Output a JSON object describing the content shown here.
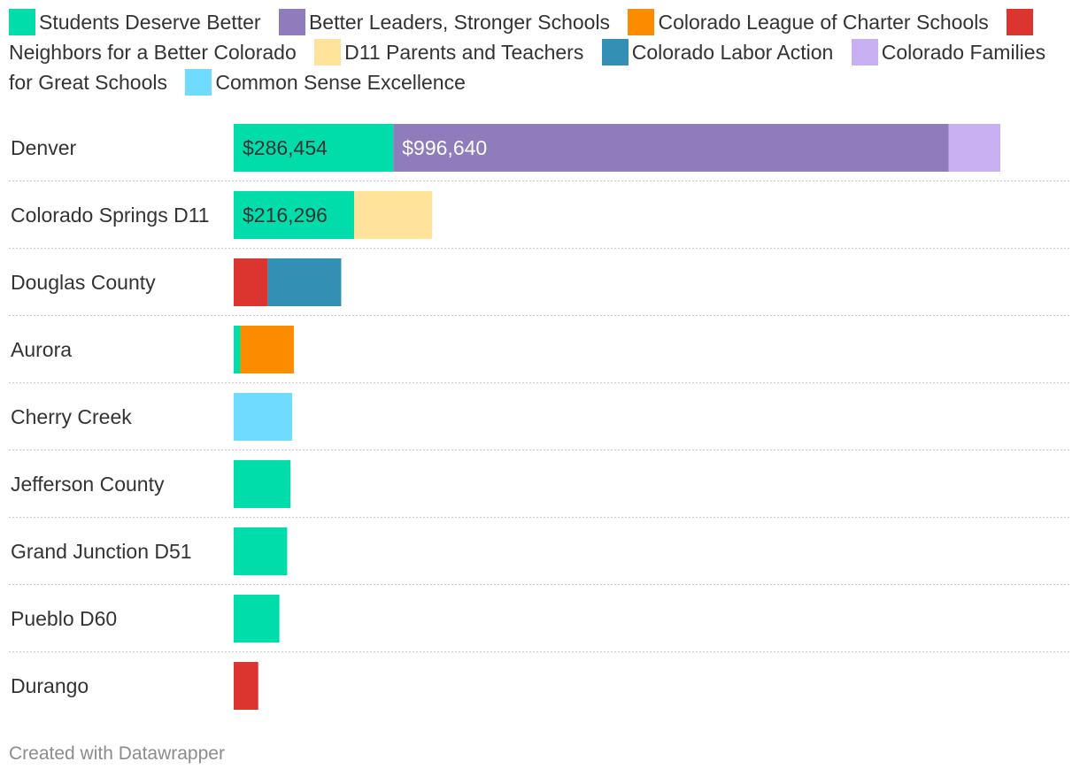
{
  "chart_data": {
    "type": "bar",
    "orientation": "horizontal",
    "stacked": true,
    "title": "",
    "xlabel": "",
    "ylabel": "",
    "xlim": [
      0,
      1500000
    ],
    "grid": false,
    "legend_position": "top",
    "legend": [
      {
        "name": "Students Deserve Better",
        "color": "#00dcaa"
      },
      {
        "name": "Better Leaders, Stronger Schools",
        "color": "#8e7cbc"
      },
      {
        "name": "Colorado League of Charter Schools",
        "color": "#fb8c00"
      },
      {
        "name": "Neighbors for a Better Colorado",
        "color": "#dc342f"
      },
      {
        "name": "D11 Parents and Teachers",
        "color": "#ffe39a"
      },
      {
        "name": "Colorado Labor Action",
        "color": "#3390b4"
      },
      {
        "name": "Colorado Families for Great Schools",
        "color": "#c8b0f2"
      },
      {
        "name": "Common Sense Excellence",
        "color": "#6edbff"
      }
    ],
    "categories": [
      "Denver",
      "Colorado Springs D11",
      "Douglas County",
      "Aurora",
      "Cherry Creek",
      "Jefferson County",
      "Grand Junction D51",
      "Pueblo D60",
      "Durango"
    ],
    "rows": [
      {
        "category": "Denver",
        "segments": [
          {
            "series": "Students Deserve Better",
            "value": 286454,
            "label": "$286,454"
          },
          {
            "series": "Better Leaders, Stronger Schools",
            "value": 996640,
            "label": "$996,640"
          },
          {
            "series": "Colorado Families for Great Schools",
            "value": 93000,
            "label": ""
          }
        ]
      },
      {
        "category": "Colorado Springs D11",
        "segments": [
          {
            "series": "Students Deserve Better",
            "value": 216296,
            "label": "$216,296"
          },
          {
            "series": "D11 Parents and Teachers",
            "value": 140000,
            "label": ""
          }
        ]
      },
      {
        "category": "Douglas County",
        "segments": [
          {
            "series": "Neighbors for a Better Colorado",
            "value": 61000,
            "label": ""
          },
          {
            "series": "Colorado Labor Action",
            "value": 132000,
            "label": ""
          }
        ]
      },
      {
        "category": "Aurora",
        "segments": [
          {
            "series": "Students Deserve Better",
            "value": 12000,
            "label": ""
          },
          {
            "series": "Colorado League of Charter Schools",
            "value": 96000,
            "label": ""
          }
        ]
      },
      {
        "category": "Cherry Creek",
        "segments": [
          {
            "series": "Common Sense Excellence",
            "value": 105000,
            "label": ""
          }
        ]
      },
      {
        "category": "Jefferson County",
        "segments": [
          {
            "series": "Students Deserve Better",
            "value": 102000,
            "label": ""
          }
        ]
      },
      {
        "category": "Grand Junction D51",
        "segments": [
          {
            "series": "Students Deserve Better",
            "value": 96000,
            "label": ""
          }
        ]
      },
      {
        "category": "Pueblo D60",
        "segments": [
          {
            "series": "Students Deserve Better",
            "value": 82000,
            "label": ""
          }
        ]
      },
      {
        "category": "Durango",
        "segments": [
          {
            "series": "Neighbors for a Better Colorado",
            "value": 44000,
            "label": ""
          }
        ]
      }
    ]
  },
  "footer": {
    "credit": "Created with Datawrapper"
  }
}
